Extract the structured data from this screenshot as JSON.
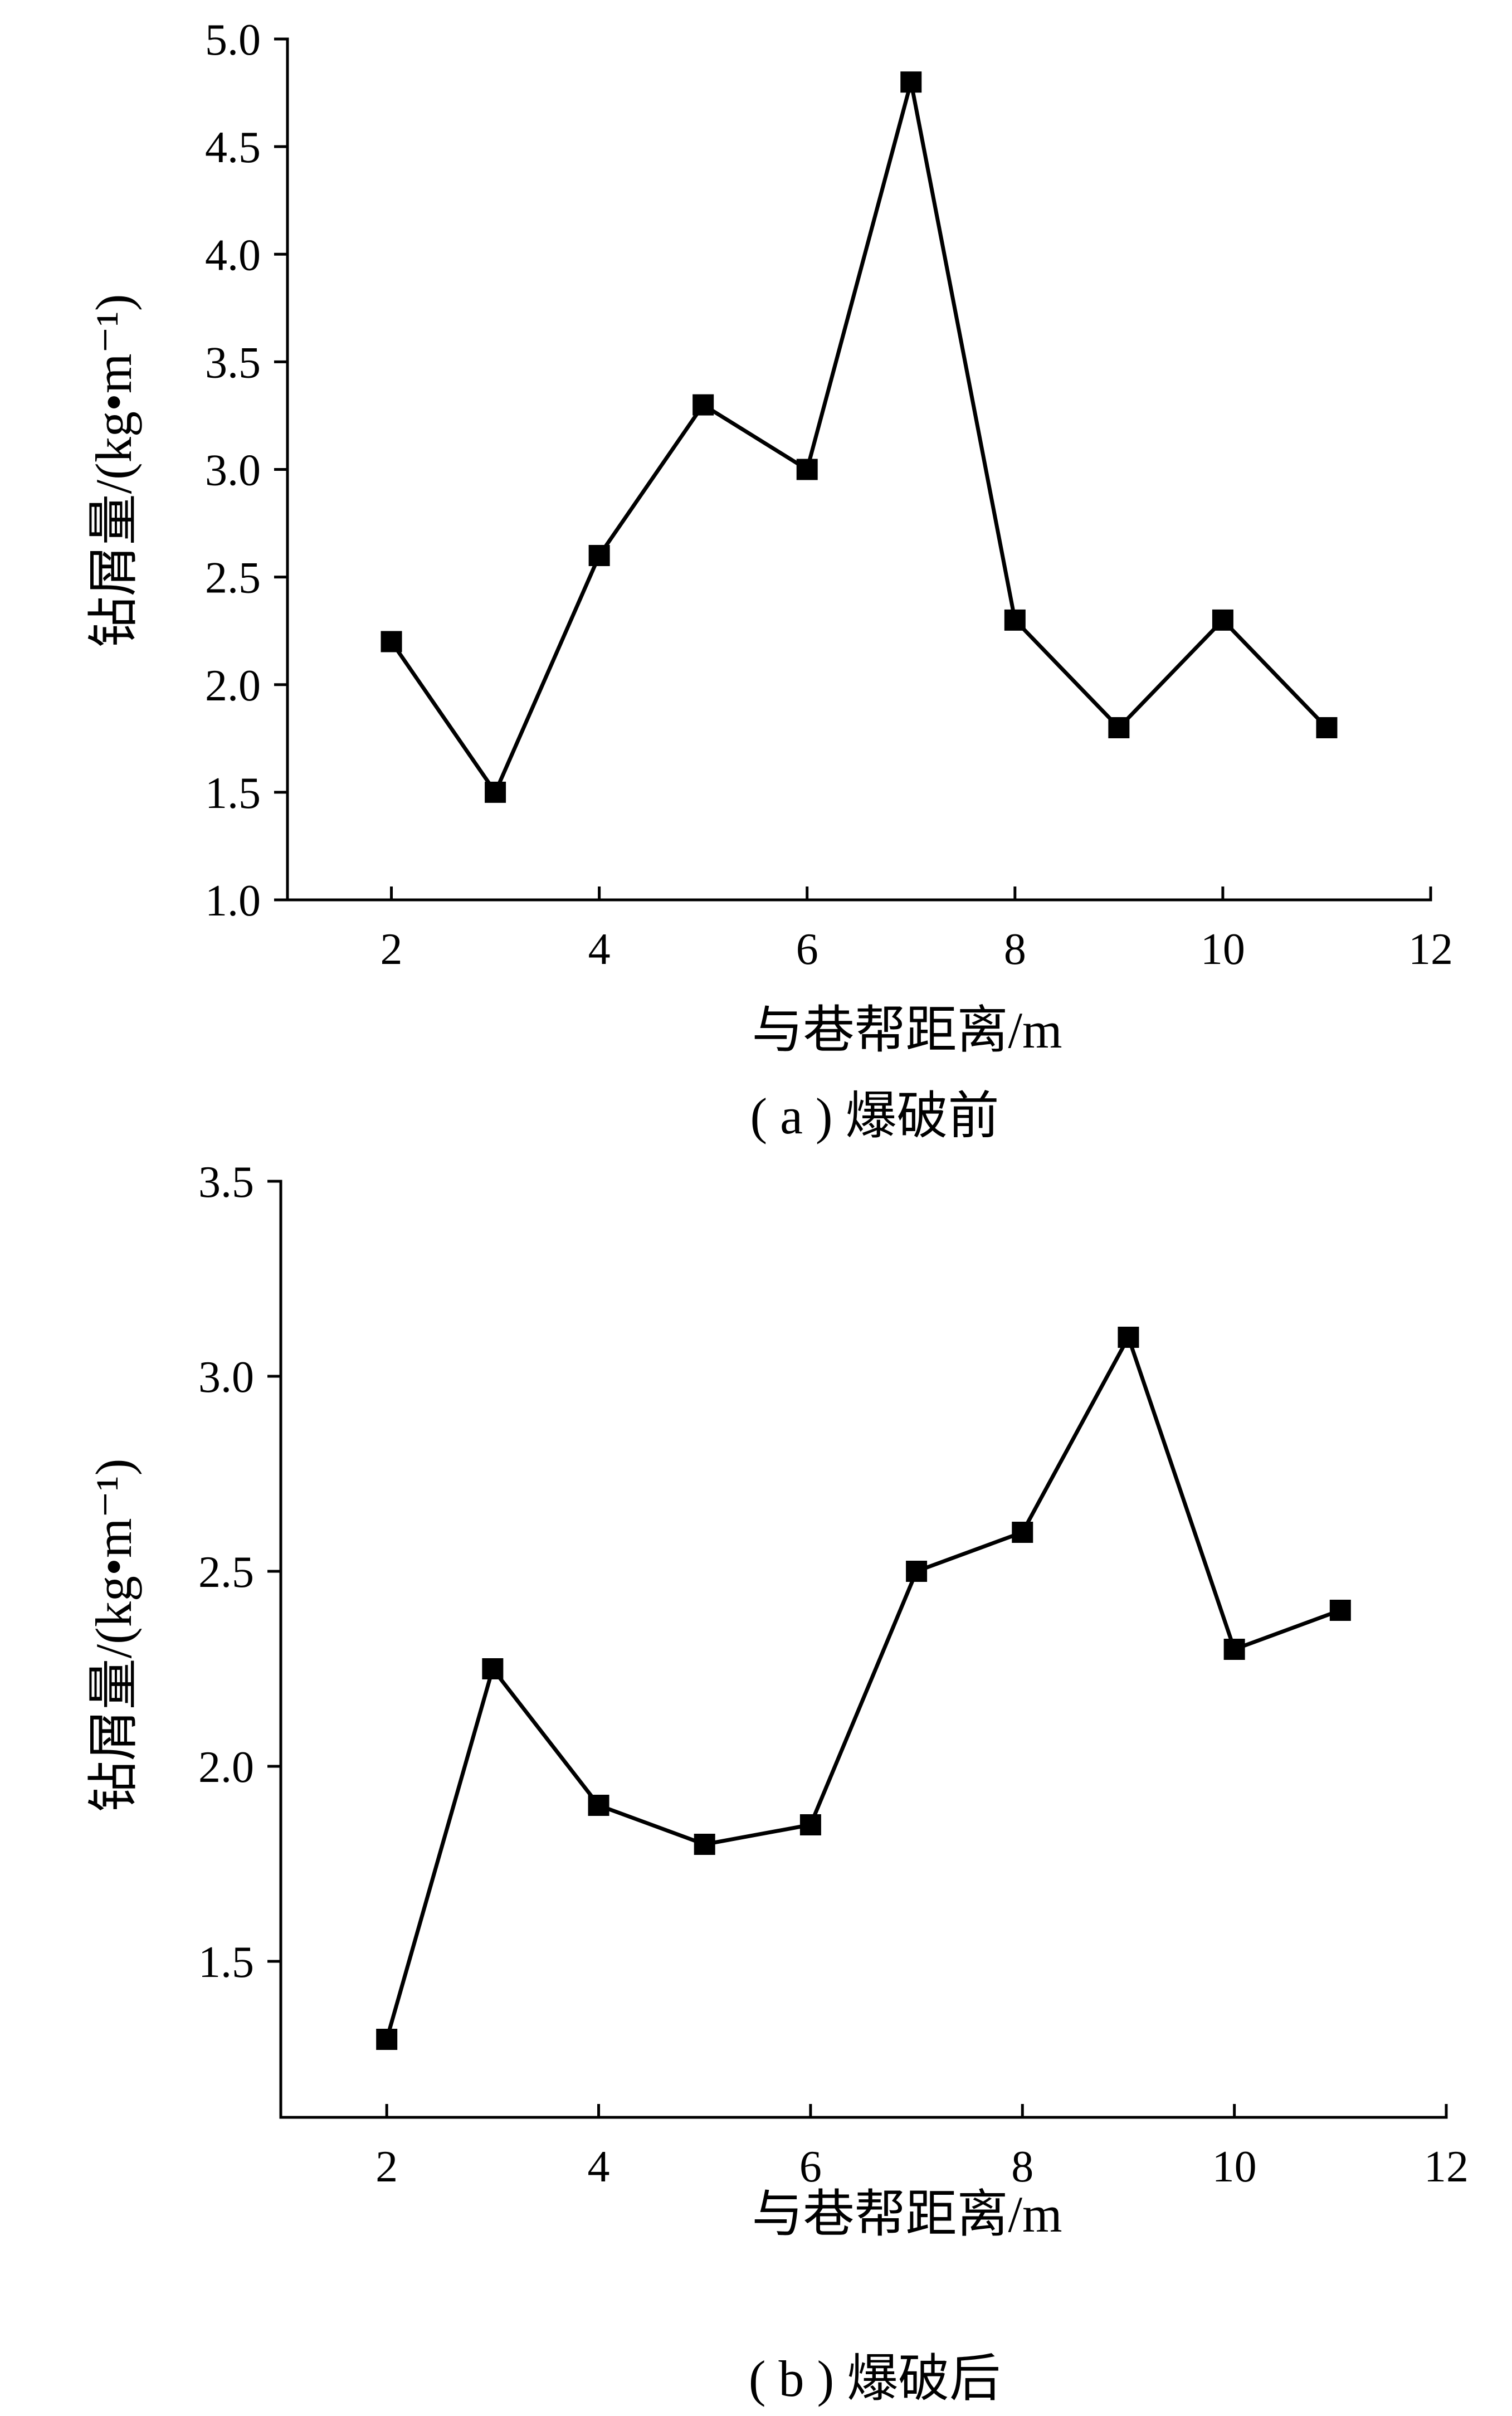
{
  "chart_data": [
    {
      "type": "line",
      "caption": "( a ) 爆破前",
      "xlabel": "与巷帮距离/m",
      "ylabel": "钻屑量/(kg•m⁻¹)",
      "xlim": [
        1,
        12
      ],
      "ylim": [
        1.0,
        5.0
      ],
      "xticks": [
        2,
        4,
        6,
        8,
        10,
        12
      ],
      "yticks": [
        1.0,
        1.5,
        2.0,
        2.5,
        3.0,
        3.5,
        4.0,
        4.5,
        5.0
      ],
      "ytick_decimals": 1,
      "grid": false,
      "marker": "square",
      "series": [
        {
          "x": [
            2,
            3,
            4,
            5,
            6,
            7,
            8,
            9,
            10,
            11
          ],
          "y": [
            2.2,
            1.5,
            2.6,
            3.3,
            3.0,
            4.8,
            2.3,
            1.8,
            2.3,
            1.8
          ]
        }
      ]
    },
    {
      "type": "line",
      "caption": "( b ) 爆破后",
      "xlabel": "与巷帮距离/m",
      "ylabel": "钻屑量/(kg•m⁻¹)",
      "xlim": [
        1,
        12
      ],
      "ylim": [
        1.1,
        3.5
      ],
      "xticks": [
        2,
        4,
        6,
        8,
        10,
        12
      ],
      "yticks": [
        1.5,
        2.0,
        2.5,
        3.0,
        3.5
      ],
      "ytick_decimals": 1,
      "grid": false,
      "marker": "square",
      "series": [
        {
          "x": [
            2,
            3,
            4,
            5,
            6,
            7,
            8,
            9,
            10,
            11
          ],
          "y": [
            1.3,
            2.25,
            1.9,
            1.8,
            1.85,
            2.5,
            2.6,
            3.1,
            2.3,
            2.4
          ]
        }
      ]
    }
  ]
}
